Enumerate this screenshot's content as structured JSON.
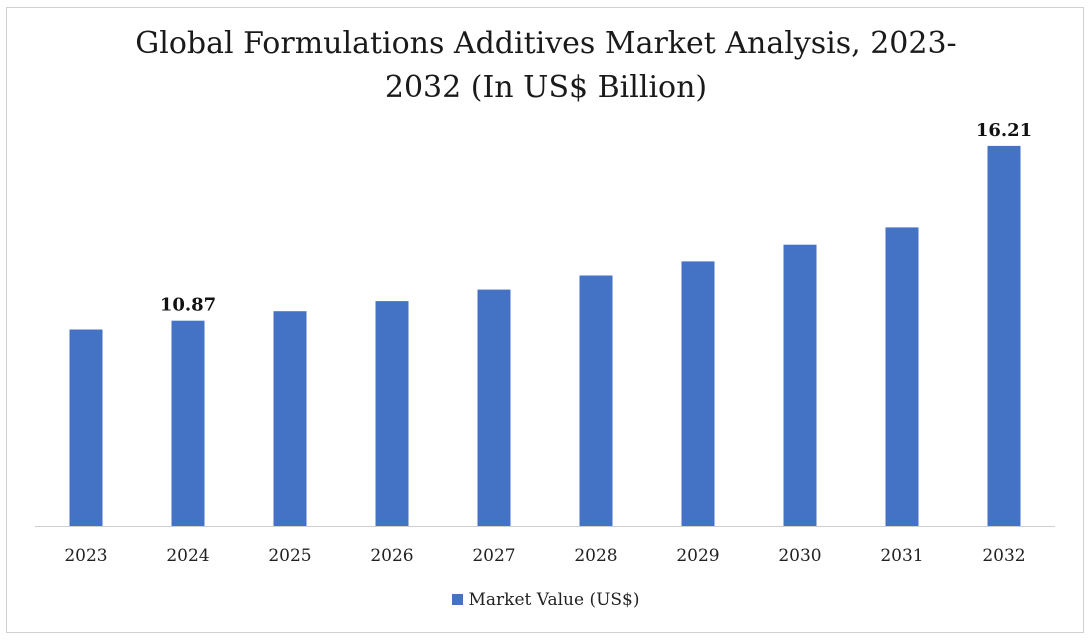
{
  "chart_data": {
    "type": "bar",
    "title_line1": "Global Formulations Additives Market Analysis, 2023-",
    "title_line2": "2032 (In US$ Billion)",
    "categories": [
      "2023",
      "2024",
      "2025",
      "2026",
      "2027",
      "2028",
      "2029",
      "2030",
      "2031",
      "2032"
    ],
    "series": [
      {
        "name": "Market Value (US$)",
        "values": [
          10.6,
          10.87,
          11.16,
          11.47,
          11.82,
          12.25,
          12.68,
          13.19,
          13.72,
          16.21
        ],
        "color": "#4472c4"
      }
    ],
    "data_labels": [
      {
        "category": "2024",
        "text": "10.87"
      },
      {
        "category": "2032",
        "text": "16.21"
      }
    ],
    "ylim": [
      4.6,
      17.0
    ],
    "grid": false,
    "legend_position": "bottom"
  }
}
